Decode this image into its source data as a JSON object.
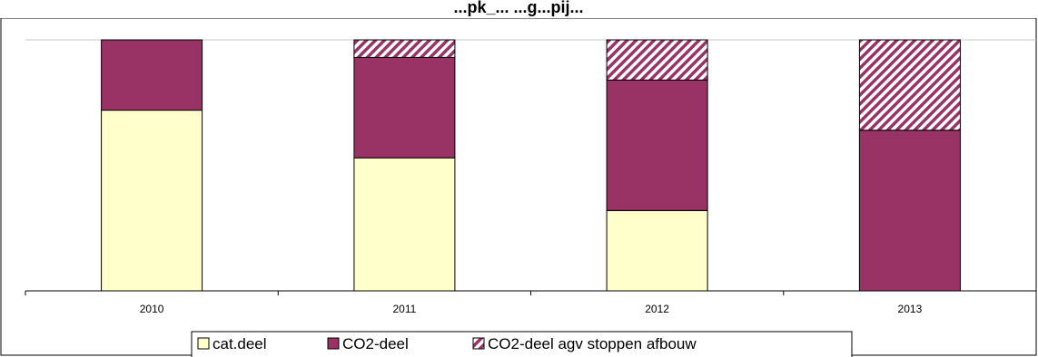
{
  "chart_data": {
    "type": "bar",
    "stacked": true,
    "normalized": true,
    "title": "...pk_... ...g...pij...",
    "categories": [
      "2010",
      "2011",
      "2012",
      "2013"
    ],
    "series": [
      {
        "name": "cat.deel",
        "values": [
          0.72,
          0.53,
          0.32,
          0.0
        ],
        "color": "#FFFFCC",
        "pattern": "solid"
      },
      {
        "name": "CO2-deel",
        "values": [
          0.28,
          0.4,
          0.52,
          0.64
        ],
        "color": "#993366",
        "pattern": "solid"
      },
      {
        "name": "CO2-deel agv stoppen afbouw",
        "values": [
          0.0,
          0.07,
          0.16,
          0.36
        ],
        "color": "#993366",
        "pattern": "diagonal-hatch"
      }
    ],
    "ylim": [
      0,
      1
    ],
    "grid": false,
    "legend_position": "bottom"
  }
}
